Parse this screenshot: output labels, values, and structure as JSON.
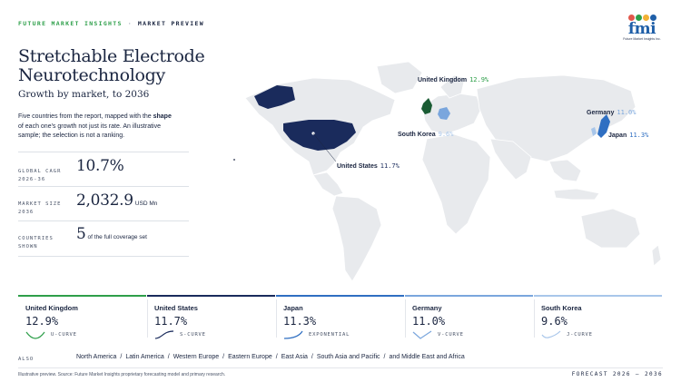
{
  "header": {
    "brand": "FUTURE MARKET INSIGHTS",
    "separator": "·",
    "section": "MARKET PREVIEW"
  },
  "logo": {
    "text": "fmi",
    "subtext": "Future Market Insights Inc.",
    "dot_colors": [
      "#e2574c",
      "#2e9f4a",
      "#f2b134",
      "#1f5fa8"
    ]
  },
  "title": "Stretchable Electrode Neurotechnology",
  "subtitle": "Growth by market, to 2036",
  "description": {
    "before": "Five countries from the report, mapped with the ",
    "emphasis": "shape",
    "after": " of each one's growth not just its rate. An illustrative sample; the selection is not a ranking."
  },
  "stats": [
    {
      "label": "GLOBAL CAGR 2026-36",
      "value": "10.7%",
      "unit": ""
    },
    {
      "label": "MARKET SIZE 2036",
      "value": "2,032.9",
      "unit": "USD Mn"
    },
    {
      "label": "COUNTRIES SHOWN",
      "value": "5",
      "unit": "of the full coverage set"
    }
  ],
  "chart_data": {
    "type": "map",
    "metric": "CAGR",
    "countries": [
      {
        "name": "United Kingdom",
        "rate_label": "12.9%",
        "value": 12.9,
        "curve": "U-CURVE"
      },
      {
        "name": "United States",
        "rate_label": "11.7%",
        "value": 11.7,
        "curve": "S-CURVE"
      },
      {
        "name": "Japan",
        "rate_label": "11.3%",
        "value": 11.3,
        "curve": "EXPONENTIAL"
      },
      {
        "name": "Germany",
        "rate_label": "11.0%",
        "value": 11.0,
        "curve": "V-CURVE"
      },
      {
        "name": "South Korea",
        "rate_label": "9.6%",
        "value": 9.6,
        "curve": "J-CURVE"
      }
    ]
  },
  "colors": {
    "navy": "#1a2b5c",
    "accent_green": "#2e9f4a",
    "mid_blue": "#2f6fc2",
    "light_blue": "#7aa6dd",
    "pale_blue": "#a8c6ea",
    "land": "#e8eaed"
  },
  "also": {
    "label": "ALSO",
    "regions": [
      "North America",
      "Latin America",
      "Western Europe",
      "Eastern Europe",
      "East Asia",
      "South Asia and Pacific",
      "and Middle East and Africa"
    ]
  },
  "footer": {
    "note": "Illustrative preview. Source: Future Market Insights proprietary forecasting model and primary research.",
    "forecast": "FORECAST 2026 – 2036"
  }
}
